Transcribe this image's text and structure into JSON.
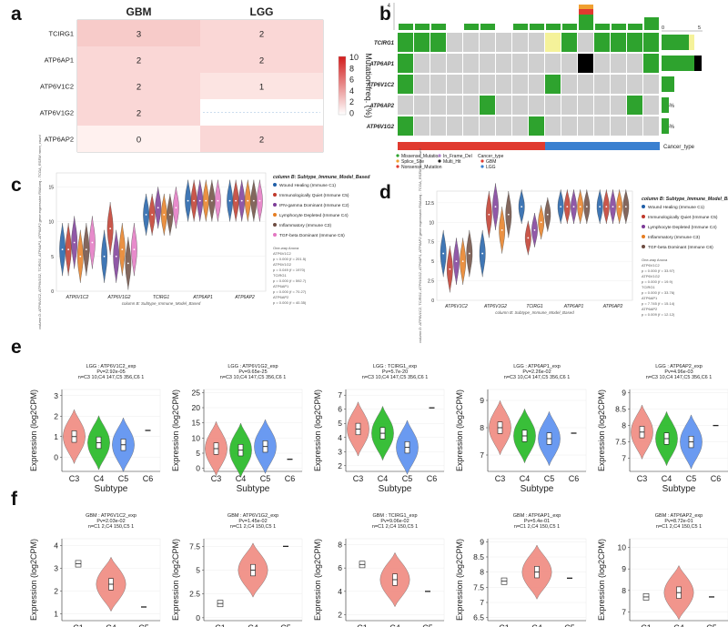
{
  "colors": {
    "green": "#2ea32e",
    "grey": "#cfcfcf",
    "yellow": "#f5f29a",
    "black": "#000000",
    "red": "#e8534a",
    "salmon": "#f08a80",
    "c4green": "#23b823",
    "c5blue": "#5a8ff0",
    "gbm_bar": "#e03a2f",
    "lgg_bar": "#3a80d0",
    "heat_low": "#fff1ef",
    "heat_high": "#d21c1c"
  },
  "panel_labels": [
    "a",
    "b",
    "c",
    "d",
    "e",
    "f"
  ],
  "chart_data": [
    {
      "id": "a",
      "type": "heatmap",
      "columns": [
        "GBM",
        "LGG"
      ],
      "rows": [
        "TCIRG1",
        "ATP6AP1",
        "ATP6V1C2",
        "ATP6V1G2",
        "ATP6AP2"
      ],
      "values": [
        [
          3,
          2
        ],
        [
          2,
          2
        ],
        [
          2,
          1
        ],
        [
          2,
          null
        ],
        [
          0,
          2
        ]
      ],
      "legend_title": "Mutation freq. (%)",
      "legend_ticks": [
        10,
        8,
        6,
        4,
        2,
        0
      ]
    },
    {
      "id": "b",
      "type": "oncoprint",
      "genes": [
        "TCIRG1",
        "ATP6AP1",
        "ATP6V1C2",
        "ATP6AP2",
        "ATP6V1G2"
      ],
      "percents": [
        "38%",
        "31%",
        "23%",
        "15%",
        "15%"
      ],
      "top_axis_max": "4",
      "right_axis": [
        "0",
        "5"
      ],
      "track_label": "Cancer_type",
      "legend_mut": [
        "Missense_Mutation",
        "Splice_Site",
        "Nonsense_Mutation",
        "In_Frame_Del",
        "Multi_Hit"
      ],
      "legend_type_title": "Cancer_type",
      "legend_types": [
        "GBM",
        "LGG"
      ]
    },
    {
      "id": "c",
      "type": "violin",
      "xlabel": "column B: Subtype_Immune_Model_Based",
      "ylabel": "column D: ATP6V1C2, ATP6V1G2, TCIRG1, ATP6AP1, ATP6AP2 gene expression RNAseq - TCGA_RSEM norm_count",
      "categories": [
        "ATP6V1C2",
        "ATP6V1G2",
        "TCIRG1",
        "ATP6AP1",
        "ATP6AP2"
      ],
      "yticks": [
        0,
        5,
        10,
        15
      ],
      "legend_title": "column B: Subtype_Immune_Model_Based",
      "legend": [
        "Wound Healing (Immune C1)",
        "Immunologically Quiet (Immune C5)",
        "IFN-gamma Dominant (Immune C2)",
        "Lymphocyte Depleted (Immune C4)",
        "Inflammatory (Immune C3)",
        "TGF-beta Dominant (Immune C6)"
      ],
      "anova": [
        "One-way Anova",
        "ATP6V1C2",
        "p < 0.000 (f = 201.5)",
        "ATP6V1G2",
        "p = 0.049 (f = 1970)",
        "TCIRG1",
        "p = 0.000 (f = 592.7)",
        "ATP6AP1",
        "p = 0.000 (f = 70.27)",
        "ATP6AP2",
        "p = 0.000 (f = 40.35)"
      ]
    },
    {
      "id": "d",
      "type": "violin",
      "xlabel": "column B: Subtype_Immune_Model_Based",
      "ylabel": "column D: ATP6V1C2, TCIRG1, ATP6V1G2, ATP6AP1, ATP6AP2 gene expression RNAseq - TCGA_RSEM norm_count",
      "categories": [
        "ATP6V1C2",
        "ATP6V1G2",
        "TCIRG1",
        "ATP6AP1",
        "ATP6AP2"
      ],
      "yticks": [
        0,
        2.5,
        5,
        7.5,
        10,
        12.5
      ],
      "legend_title": "column B: Subtype_Immune_Model_Based",
      "legend": [
        "Wound Healing (Immune C1)",
        "Immunologically Quiet (Immune C5)",
        "Lymphocyte Depleted (Immune C4)",
        "Inflammatory (Immune C3)",
        "TGF-beta Dominant (Immune C6)"
      ],
      "anova": [
        "One-way Anova",
        "ATP6V1C2",
        "p = 0.000 (f = 33.97)",
        "ATP6V1G2",
        "p = 0.000 (f = 19.9)",
        "TCIRG1",
        "p = 0.000 (f = 33.76)",
        "ATP6AP1",
        "p = 7.745 (f = 15.14)",
        "ATP6AP2",
        "p = 0.009 (f = 12.12)"
      ]
    },
    {
      "id": "e",
      "type": "violin",
      "xlabel": "Subtype",
      "ylabel": "Expression (log2CPM)",
      "categories": [
        "C3",
        "C4",
        "C5",
        "C6"
      ],
      "plots": [
        {
          "title": "LGG : ATP6V1C2_exp",
          "pv": "Pv=2.92e-05",
          "n": "n=C3 10,C4 147,C5 356,C6 1",
          "yticks": [
            0,
            1,
            2,
            3
          ],
          "ylim": [
            -0.7,
            3.3
          ],
          "medians": [
            1.0,
            0.7,
            0.6,
            1.3
          ]
        },
        {
          "title": "LGG : ATP6V1G2_exp",
          "pv": "Pv=9.65e-25",
          "n": "n=C3 10,C4 147,C5 356,C6 1",
          "yticks": [
            0,
            5,
            10,
            15,
            20,
            25
          ],
          "ylim": [
            -1,
            26
          ],
          "medians": [
            6.5,
            6,
            7.2,
            3
          ]
        },
        {
          "title": "LGG : TCIRG1_exp",
          "pv": "Pv=5.7e-20",
          "n": "n=C3 10,C4 147,C5 356,C6 1",
          "yticks": [
            2,
            3,
            4,
            5,
            6,
            7
          ],
          "ylim": [
            1.6,
            7.4
          ],
          "medians": [
            4.6,
            4.3,
            3.3,
            6.1
          ]
        },
        {
          "title": "LGG : ATP6AP1_exp",
          "pv": "Pv=2.26e-02",
          "n": "n=C3 10,C4 147,C5 356,C6 1",
          "yticks": [
            7,
            8,
            9
          ],
          "ylim": [
            6.4,
            9.4
          ],
          "medians": [
            8.0,
            7.7,
            7.6,
            7.8
          ]
        },
        {
          "title": "LGG : ATP6AP2_exp",
          "pv": "Pv=4.96e-03",
          "n": "n=C3 10,C4 147,C5 356,C6 1",
          "yticks": [
            7,
            7.5,
            8,
            8.5,
            9
          ],
          "ylim": [
            6.6,
            9.1
          ],
          "medians": [
            7.8,
            7.6,
            7.5,
            8.0
          ]
        }
      ]
    },
    {
      "id": "f",
      "type": "violin",
      "xlabel": "Subtype",
      "ylabel": "Expression (log2CPM)",
      "categories": [
        "C1",
        "C4",
        "C5"
      ],
      "plots": [
        {
          "title": "GBM : ATP6V1C2_exp",
          "pv": "Pv=2.03e-02",
          "n": "n=C1 2,C4 150,C5 1",
          "yticks": [
            1,
            2,
            3,
            4
          ],
          "ylim": [
            0.7,
            4.3
          ],
          "medians": [
            3.2,
            2.3,
            1.3
          ]
        },
        {
          "title": "GBM : ATP6V1G2_exp",
          "pv": "Pv=1.45e-02",
          "n": "n=C1 2,C4 150,C5 1",
          "yticks": [
            0.0,
            2.5,
            5.0,
            7.5
          ],
          "ylim": [
            -0.3,
            8.3
          ],
          "medians": [
            1.5,
            5.0,
            7.5
          ]
        },
        {
          "title": "GBM : TCIRG1_exp",
          "pv": "Pv=9.06e-02",
          "n": "n=C1 2,C4 150,C5 1",
          "yticks": [
            2,
            4,
            6,
            8
          ],
          "ylim": [
            1.5,
            8.5
          ],
          "medians": [
            6.3,
            5.0,
            4.0
          ]
        },
        {
          "title": "GBM : ATP6AP1_exp",
          "pv": "Pv=5.4e-01",
          "n": "n=C1 2,C4 150,C5 1",
          "yticks": [
            6.5,
            7.0,
            7.5,
            8.0,
            8.5,
            9.0
          ],
          "ylim": [
            6.4,
            9.1
          ],
          "medians": [
            7.7,
            8.0,
            7.8
          ]
        },
        {
          "title": "GBM : ATP6AP2_exp",
          "pv": "Pv=8.72e-01",
          "n": "n=C1 2,C4 150,C5 1",
          "yticks": [
            7,
            8,
            9,
            10
          ],
          "ylim": [
            6.6,
            10.4
          ],
          "medians": [
            7.7,
            7.9,
            7.7
          ]
        }
      ]
    }
  ]
}
